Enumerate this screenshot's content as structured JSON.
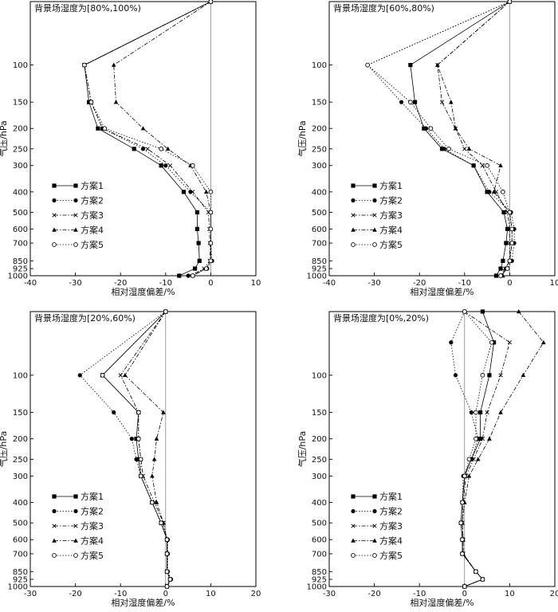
{
  "chart_data": [
    {
      "type": "line",
      "title": "背景场湿度为[80%,100%)",
      "xlabel": "相对湿度偏差/%",
      "ylabel": "气压/hPa",
      "xlim": [
        -40,
        10
      ],
      "xticks": [
        -40,
        -30,
        -20,
        -10,
        0,
        10
      ],
      "ylim": [
        1000,
        50
      ],
      "yticks": [
        100,
        150,
        200,
        250,
        300,
        400,
        500,
        600,
        700,
        850,
        925,
        1000
      ],
      "legend_position": "bottom-left",
      "pressure": [
        50,
        100,
        150,
        200,
        250,
        300,
        400,
        500,
        600,
        700,
        850,
        925,
        1000
      ],
      "series": [
        {
          "name": "方案1",
          "marker": "square",
          "style": "solid",
          "values": [
            0,
            -28,
            -27,
            -25,
            -17,
            -11,
            -6,
            -3,
            -3,
            -2.7,
            -2.5,
            -3.5,
            -7
          ]
        },
        {
          "name": "方案2",
          "marker": "circle",
          "style": "dotted",
          "values": [
            0,
            -28,
            -26.5,
            -24,
            -15,
            -10,
            -4.5,
            0,
            0,
            0,
            0.3,
            -0.8,
            -5
          ]
        },
        {
          "name": "方案3",
          "marker": "x",
          "style": "dashdot",
          "values": [
            0,
            -28,
            -26.5,
            -24,
            -14,
            -9,
            -4,
            -0.5,
            -0.3,
            -0.2,
            -0.2,
            -1.5,
            -4.5
          ]
        },
        {
          "name": "方案4",
          "marker": "triangle",
          "style": "dashdot",
          "values": [
            0,
            -21.5,
            -21,
            -15,
            -9.5,
            -4.5,
            -1,
            0,
            0,
            0,
            0,
            -1,
            -4
          ]
        },
        {
          "name": "方案5",
          "marker": "open-circle",
          "style": "dotted",
          "values": [
            0,
            -28,
            -26.5,
            -23.5,
            -11,
            -4,
            0,
            0,
            0,
            0,
            0,
            -1,
            -4
          ]
        }
      ]
    },
    {
      "type": "line",
      "title": "背景场湿度为[60%,80%)",
      "xlabel": "相对湿度偏差/%",
      "ylabel": "气压/hPa",
      "xlim": [
        -40,
        10
      ],
      "xticks": [
        -40,
        -30,
        -20,
        -10,
        0,
        10
      ],
      "ylim": [
        1000,
        50
      ],
      "yticks": [
        100,
        150,
        200,
        250,
        300,
        400,
        500,
        600,
        700,
        850,
        925,
        1000
      ],
      "legend_position": "bottom-left",
      "pressure": [
        50,
        100,
        150,
        200,
        250,
        300,
        400,
        500,
        600,
        700,
        850,
        925,
        1000
      ],
      "series": [
        {
          "name": "方案1",
          "marker": "square",
          "style": "solid",
          "values": [
            0,
            -22,
            -21,
            -19,
            -15,
            -8,
            -5,
            -1.3,
            -0.5,
            -0.8,
            -1.5,
            -2,
            -3
          ]
        },
        {
          "name": "方案2",
          "marker": "circle",
          "style": "dotted",
          "values": [
            0,
            -31.5,
            -24,
            -18.5,
            -14.5,
            -8,
            -4.5,
            0.3,
            1,
            1,
            0.5,
            -0.5,
            -2
          ]
        },
        {
          "name": "方案3",
          "marker": "x",
          "style": "dashdot",
          "values": [
            0,
            -16,
            -15,
            -12,
            -10,
            -6,
            -3,
            -0.5,
            0,
            0,
            0,
            -1,
            -2
          ]
        },
        {
          "name": "方案4",
          "marker": "triangle",
          "style": "dashdot",
          "values": [
            0,
            -16,
            -13,
            -12,
            -9,
            -2,
            -3.5,
            0,
            0.5,
            0.5,
            0,
            -1,
            -1.5
          ]
        },
        {
          "name": "方案5",
          "marker": "open-circle",
          "style": "dotted",
          "values": [
            0,
            -31.5,
            -22,
            -17.5,
            -13.5,
            -5,
            -1.5,
            0,
            0.5,
            0.5,
            0,
            -0.5,
            -2
          ]
        }
      ]
    },
    {
      "type": "line",
      "title": "背景场湿度为[20%,60%)",
      "xlabel": "相对湿度偏差/%",
      "ylabel": "气压/hPa",
      "xlim": [
        -30,
        20
      ],
      "xticks": [
        -30,
        -20,
        -10,
        0,
        10,
        20
      ],
      "ylim": [
        1000,
        50
      ],
      "yticks": [
        100,
        150,
        200,
        250,
        300,
        400,
        500,
        600,
        700,
        850,
        925,
        1000
      ],
      "legend_position": "bottom-left",
      "pressure": [
        50,
        100,
        150,
        200,
        250,
        300,
        400,
        500,
        600,
        700,
        850,
        925,
        1000
      ],
      "series": [
        {
          "name": "方案1",
          "marker": "square",
          "style": "solid",
          "values": [
            0,
            -14,
            -6,
            -6.5,
            -6,
            -5.5,
            -3,
            -1,
            0.3,
            0.3,
            0.3,
            1,
            0.3
          ]
        },
        {
          "name": "方案2",
          "marker": "circle",
          "style": "dotted",
          "values": [
            0,
            -19,
            -11.5,
            -7.5,
            -6.5,
            -5.5,
            -3,
            -1,
            0.5,
            0.5,
            0.5,
            1.2,
            0.3
          ]
        },
        {
          "name": "方案3",
          "marker": "x",
          "style": "dashdot",
          "values": [
            0,
            -10,
            -6,
            -6,
            -5.5,
            -5,
            -2.5,
            -0.5,
            0.3,
            0.3,
            0.3,
            1,
            0.3
          ]
        },
        {
          "name": "方案4",
          "marker": "triangle",
          "style": "dashdot",
          "values": [
            0,
            -9,
            -0.5,
            -2,
            -2.5,
            -3,
            -2,
            -0.5,
            0.3,
            0.3,
            0.3,
            1,
            0.3
          ]
        },
        {
          "name": "方案5",
          "marker": "open-circle",
          "style": "dotted",
          "values": [
            0,
            -14,
            -6,
            -6,
            -5.5,
            -5.5,
            -3,
            -1,
            0.3,
            0.3,
            0.3,
            1,
            0.3
          ]
        }
      ]
    },
    {
      "type": "line",
      "title": "背景场湿度为[0%,20%)",
      "xlabel": "相对湿度偏差/%",
      "ylabel": "气压/hPa",
      "xlim": [
        -30,
        20
      ],
      "xticks": [
        -30,
        -20,
        -10,
        0,
        10,
        20
      ],
      "ylim": [
        1000,
        50
      ],
      "yticks": [
        100,
        150,
        200,
        250,
        300,
        400,
        500,
        600,
        700,
        850,
        925,
        1000
      ],
      "legend_position": "bottom-left",
      "pressure": [
        50,
        70,
        100,
        150,
        200,
        250,
        300,
        400,
        500,
        600,
        700,
        850,
        925,
        1000
      ],
      "series": [
        {
          "name": "方案1",
          "marker": "square",
          "style": "solid",
          "values": [
            4,
            6.5,
            5.5,
            3.5,
            3.5,
            1.5,
            0,
            -0.5,
            -0.8,
            -0.5,
            -0.5,
            2.5,
            4,
            0
          ]
        },
        {
          "name": "方案2",
          "marker": "circle",
          "style": "dotted",
          "values": [
            0,
            -3,
            -2,
            1.5,
            3,
            1.5,
            -0.3,
            -0.5,
            -0.8,
            -0.5,
            -0.5,
            2.5,
            4,
            0
          ]
        },
        {
          "name": "方案3",
          "marker": "x",
          "style": "dashdot",
          "values": [
            0,
            10,
            8,
            5,
            4,
            2,
            0.3,
            -0.3,
            -0.5,
            -0.3,
            -0.3,
            2.5,
            4,
            0
          ]
        },
        {
          "name": "方案4",
          "marker": "triangle",
          "style": "dashdot",
          "values": [
            12,
            17.5,
            13,
            8,
            5.5,
            3,
            1,
            0,
            -0.5,
            -0.3,
            -0.3,
            2.5,
            4,
            0
          ]
        },
        {
          "name": "方案5",
          "marker": "open-circle",
          "style": "dotted",
          "values": [
            0,
            6,
            4,
            2.5,
            2.5,
            1,
            0,
            -0.5,
            -0.8,
            -0.5,
            -0.5,
            2.5,
            4,
            0
          ]
        }
      ]
    }
  ]
}
